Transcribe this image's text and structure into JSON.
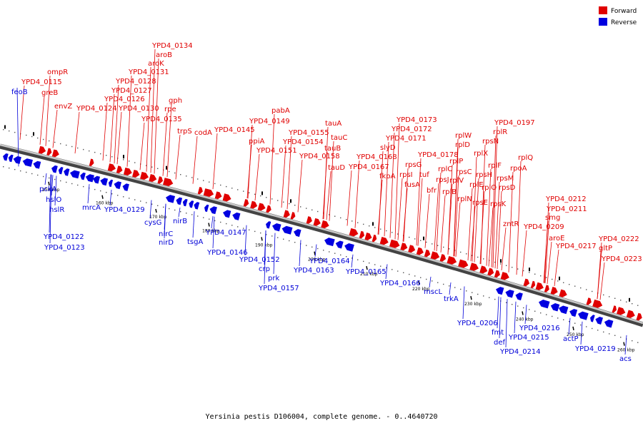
{
  "caption": "Yersinia pestis D106004, complete genome. - 0..4640720",
  "legend": [
    {
      "label": "Forward",
      "color": "#e00000"
    },
    {
      "label": "Reverse",
      "color": "#0000e0"
    }
  ],
  "colors": {
    "forward": "#e00000",
    "reverse": "#0000e0",
    "backbone": "#8a8a8a"
  },
  "forward_genes": [
    "ompR",
    "YPD4_0115",
    "greB",
    "envZ",
    "YPD4_0124",
    "YPD4_0134",
    "aroB",
    "aroK",
    "YPD4_0131",
    "YPD4_0128",
    "YPD4_0127",
    "YPD4_0126",
    "YPD4_0130",
    "gph",
    "rpe",
    "YPD4_0135",
    "trpS",
    "codA",
    "YPD4_0145",
    "pabA",
    "YPD4_0149",
    "ppiA",
    "YPD4_0154",
    "YPD4_0151",
    "YPD4_0155",
    "tauA",
    "tauC",
    "tauB",
    "YPD4_0158",
    "tauD",
    "YPD4_0168",
    "YPD4_0167",
    "YPD4_0173",
    "YPD4_0172",
    "YPD4_0171",
    "slyD",
    "fkpA",
    "rpsG",
    "rpsI",
    "fusA",
    "tuf",
    "bfr",
    "YPD4_0178",
    "rplW",
    "rplD",
    "rplP",
    "rpsC",
    "rplV",
    "rplB",
    "rplC",
    "rpsJ",
    "rpsN",
    "rplX",
    "rplF",
    "rpsH",
    "rplE",
    "rplO",
    "rplN",
    "rpsE",
    "rplR",
    "YPD4_0197",
    "rplQ",
    "rpoA",
    "rpsM",
    "rpsD",
    "rpsK",
    "zntR",
    "YPD4_0212",
    "YPD4_0211",
    "smg",
    "YPD4_0209",
    "aroE",
    "YPD4_0217",
    "YPD4_0222",
    "gltP",
    "YPD4_0223"
  ],
  "reverse_genes": [
    "feoB",
    "pckA",
    "hslO",
    "hslR",
    "YPD4_0122",
    "YPD4_0123",
    "mrcA",
    "YPD4_0129",
    "cysG",
    "nirC",
    "nirD",
    "nirB",
    "tsgA",
    "YPD4_0146",
    "YPD4_0147",
    "YPD4_0152",
    "crp",
    "prk",
    "YPD4_0157",
    "YPD4_0164",
    "YPD4_0163",
    "YPD4_0165",
    "YPD4_0166",
    "mscL",
    "trkA",
    "YPD4_0206",
    "fmt",
    "def",
    "YPD4_0216",
    "YPD4_0215",
    "YPD4_0214",
    "actP",
    "YPD4_0219",
    "acs"
  ],
  "axis_ticks": [
    "150 kbp",
    "160 kbp",
    "170 kbp",
    "180 kbp",
    "190 kbp",
    "200 kbp",
    "210 kbp",
    "220 kbp",
    "230 kbp",
    "240 kbp",
    "250 kbp",
    "260 kbp"
  ]
}
